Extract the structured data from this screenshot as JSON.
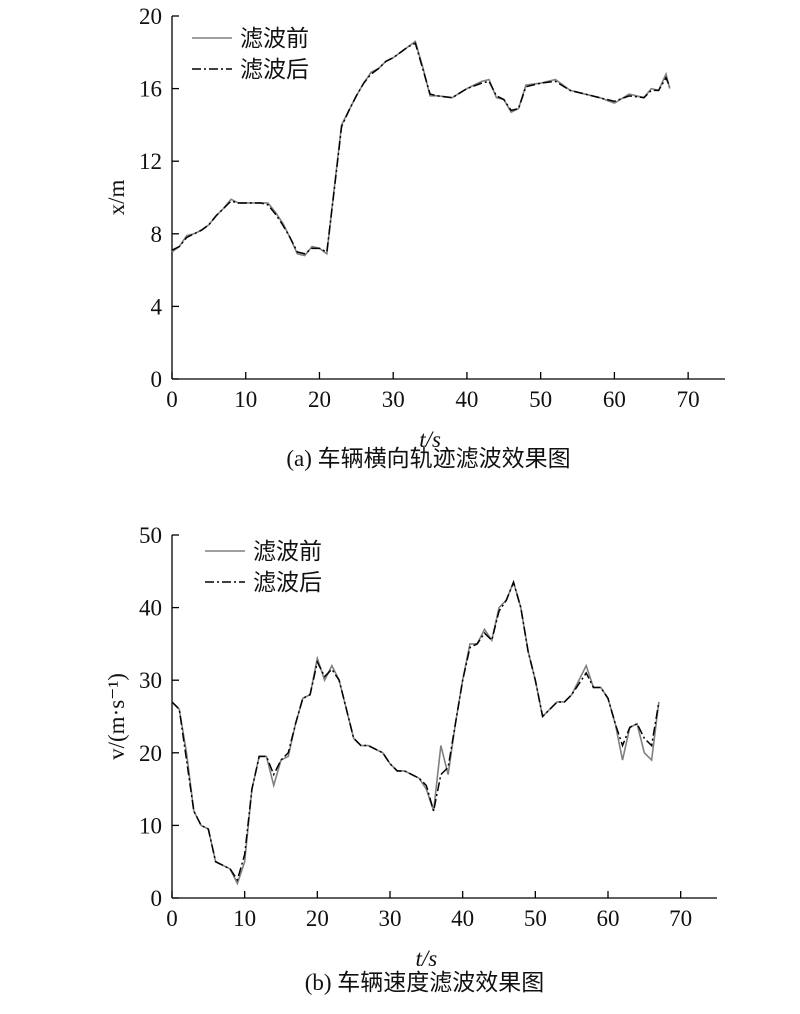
{
  "chart_data": [
    {
      "type": "line",
      "title": "(a) 车辆横向轨迹滤波效果图",
      "x_label": "t/s",
      "y_label": "x/m",
      "x": [
        0,
        1,
        2,
        3,
        4,
        5,
        6,
        7,
        8,
        9,
        10,
        11,
        12,
        13,
        14,
        15,
        16,
        17,
        18,
        19,
        20,
        21,
        22,
        23,
        24,
        25,
        26,
        27,
        28,
        29,
        30,
        31,
        32,
        33,
        34,
        35,
        36,
        38,
        40,
        42,
        43,
        44,
        45,
        46,
        47,
        48,
        50,
        52,
        54,
        56,
        58,
        60,
        62,
        64,
        65,
        66,
        67,
        67.5
      ],
      "series": [
        {
          "name": "滤波前",
          "color": "#808080",
          "values": [
            7.0,
            7.3,
            7.9,
            8.0,
            8.2,
            8.5,
            9.0,
            9.4,
            9.9,
            9.7,
            9.7,
            9.7,
            9.7,
            9.7,
            9.2,
            8.6,
            7.8,
            6.9,
            6.8,
            7.3,
            7.2,
            6.9,
            10.5,
            14.0,
            14.8,
            15.6,
            16.3,
            16.9,
            17.1,
            17.5,
            17.7,
            18.0,
            18.3,
            18.6,
            17.2,
            15.6,
            15.6,
            15.5,
            16.0,
            16.4,
            16.5,
            15.5,
            15.4,
            14.7,
            14.9,
            16.2,
            16.3,
            16.5,
            15.9,
            15.7,
            15.5,
            15.2,
            15.7,
            15.5,
            16.0,
            15.9,
            16.8,
            16.0
          ]
        },
        {
          "name": "滤波后",
          "color": "#000000",
          "values": [
            7.1,
            7.3,
            7.8,
            8.0,
            8.2,
            8.5,
            9.0,
            9.4,
            9.8,
            9.7,
            9.7,
            9.7,
            9.7,
            9.6,
            9.1,
            8.5,
            7.8,
            7.0,
            6.9,
            7.2,
            7.2,
            7.0,
            10.4,
            13.9,
            14.8,
            15.6,
            16.3,
            16.8,
            17.1,
            17.5,
            17.7,
            18.0,
            18.3,
            18.5,
            17.1,
            15.7,
            15.6,
            15.5,
            16.0,
            16.3,
            16.4,
            15.6,
            15.4,
            14.8,
            14.9,
            16.1,
            16.3,
            16.4,
            15.9,
            15.7,
            15.5,
            15.3,
            15.6,
            15.5,
            15.9,
            15.9,
            16.6,
            16.1
          ]
        }
      ],
      "xlim": [
        0,
        75
      ],
      "xticks": [
        0,
        10,
        20,
        30,
        40,
        50,
        60,
        70
      ],
      "ylim": [
        0,
        20
      ],
      "yticks": [
        0,
        4,
        8,
        12,
        16,
        20
      ],
      "legend": "upper left"
    },
    {
      "type": "line",
      "title": "(b) 车辆速度滤波效果图",
      "x_label": "t/s",
      "y_label": "v/(m·s⁻¹)",
      "x": [
        0,
        1,
        2,
        3,
        4,
        5,
        6,
        7,
        8,
        9,
        10,
        11,
        12,
        13,
        14,
        15,
        16,
        17,
        18,
        19,
        20,
        21,
        22,
        23,
        24,
        25,
        26,
        27,
        28,
        29,
        30,
        31,
        32,
        33,
        34,
        35,
        36,
        37,
        38,
        39,
        40,
        41,
        42,
        43,
        44,
        45,
        46,
        47,
        48,
        49,
        50,
        51,
        52,
        53,
        54,
        55,
        56,
        57,
        58,
        59,
        60,
        61,
        62,
        63,
        64,
        65,
        66,
        67
      ],
      "series": [
        {
          "name": "滤波前",
          "color": "#808080",
          "values": [
            27,
            26,
            20,
            12,
            10,
            9.5,
            5,
            4.5,
            4,
            2,
            5,
            15,
            19.5,
            19.5,
            15.5,
            19,
            19.5,
            24,
            27.5,
            28,
            33,
            30,
            32,
            30,
            26,
            22,
            21,
            21,
            20.5,
            20,
            18.5,
            17.5,
            17.5,
            17,
            16.5,
            15,
            12,
            21,
            17,
            24,
            30,
            35,
            35,
            37,
            35.5,
            40,
            41,
            43.5,
            40,
            34,
            30,
            25,
            26,
            27,
            27,
            28,
            30,
            32,
            29,
            29,
            27.5,
            24,
            19,
            23.5,
            24,
            20,
            19,
            27
          ]
        },
        {
          "name": "滤波后",
          "color": "#000000",
          "values": [
            27,
            26,
            19,
            12,
            10,
            9.5,
            5,
            4.5,
            4,
            2.5,
            6,
            15,
            19.5,
            19.5,
            17,
            19,
            20,
            24,
            27.5,
            28,
            32.5,
            30.5,
            31.5,
            30,
            26,
            22,
            21,
            21,
            20.5,
            20,
            18.5,
            17.5,
            17.5,
            17,
            16.5,
            15.5,
            12,
            17,
            18,
            24,
            30,
            34.5,
            35,
            36.5,
            35.5,
            39.5,
            41,
            43.5,
            40,
            34,
            30,
            25,
            26,
            27,
            27,
            28,
            29.5,
            31,
            29,
            29,
            27.5,
            24,
            21,
            23.5,
            24,
            22,
            21,
            27
          ]
        }
      ],
      "xlim": [
        0,
        75
      ],
      "xticks": [
        0,
        10,
        20,
        30,
        40,
        50,
        60,
        70
      ],
      "ylim": [
        0,
        50
      ],
      "yticks": [
        0,
        10,
        20,
        30,
        40,
        50
      ],
      "legend": "upper left"
    }
  ]
}
